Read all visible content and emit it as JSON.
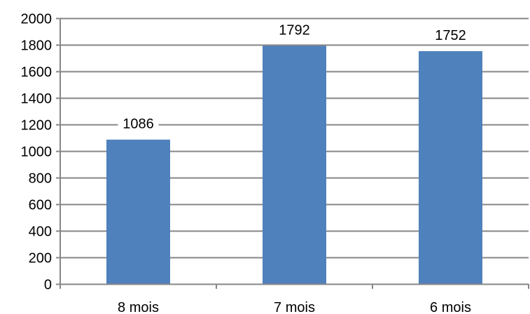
{
  "chart_data": {
    "type": "bar",
    "categories": [
      "8 mois",
      "7 mois",
      "6 mois"
    ],
    "values": [
      1086,
      1792,
      1752
    ],
    "data_labels": [
      "1086",
      "1792",
      "1752"
    ],
    "title": "",
    "xlabel": "",
    "ylabel": "",
    "ylim": [
      0,
      2000
    ],
    "yticks": [
      0,
      200,
      400,
      600,
      800,
      1000,
      1200,
      1400,
      1600,
      1800,
      2000
    ],
    "grid": true,
    "legend": "none",
    "colors": {
      "bar": "#4F81BD",
      "gridline": "#868686",
      "axis": "#868686",
      "label_background": "#ffffff"
    }
  }
}
